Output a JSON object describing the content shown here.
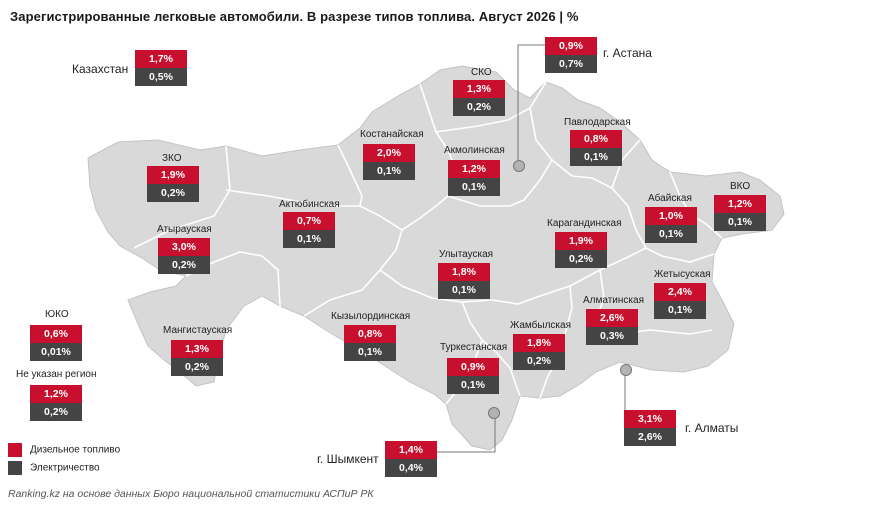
{
  "title": "Зарегистрированные легковые автомобили. В разрезе типов топлива. Август 2026 | %",
  "colors": {
    "diesel": "#c8102e",
    "electric": "#444444",
    "map_fill": "#d9d9d9",
    "border": "#ffffff"
  },
  "regions": {
    "kz": {
      "name": "Казахстан",
      "diesel": "1,7%",
      "electric": "0,5%"
    },
    "sko": {
      "name": "СКО",
      "diesel": "1,3%",
      "electric": "0,2%"
    },
    "astana": {
      "name": "г. Астана",
      "diesel": "0,9%",
      "electric": "0,7%"
    },
    "pavlodar": {
      "name": "Павлодарская",
      "diesel": "0,8%",
      "electric": "0,1%"
    },
    "kostanay": {
      "name": "Костанайская",
      "diesel": "2,0%",
      "electric": "0,1%"
    },
    "akmola": {
      "name": "Акмолинская",
      "diesel": "1,2%",
      "electric": "0,1%"
    },
    "zko": {
      "name": "ЗКО",
      "diesel": "1,9%",
      "electric": "0,2%"
    },
    "aktobe": {
      "name": "Актюбинская",
      "diesel": "0,7%",
      "electric": "0,1%"
    },
    "abay": {
      "name": "Абайская",
      "diesel": "1,0%",
      "electric": "0,1%"
    },
    "vko": {
      "name": "ВКО",
      "diesel": "1,2%",
      "electric": "0,1%"
    },
    "atyrau": {
      "name": "Атырауская",
      "diesel": "3,0%",
      "electric": "0,2%"
    },
    "karaganda": {
      "name": "Карагандинская",
      "diesel": "1,9%",
      "electric": "0,2%"
    },
    "ulytau": {
      "name": "Улытауская",
      "diesel": "1,8%",
      "electric": "0,1%"
    },
    "zhetysu": {
      "name": "Жетысуская",
      "diesel": "2,4%",
      "electric": "0,1%"
    },
    "uko": {
      "name": "ЮКО",
      "diesel": "0,6%",
      "electric": "0,01%"
    },
    "almaty_reg": {
      "name": "Алматинская",
      "diesel": "2,6%",
      "electric": "0,3%"
    },
    "mangystau": {
      "name": "Мангистауская",
      "diesel": "1,3%",
      "electric": "0,2%"
    },
    "kyzylorda": {
      "name": "Кызылординская",
      "diesel": "0,8%",
      "electric": "0,1%"
    },
    "zhambyl": {
      "name": "Жамбылская",
      "diesel": "1,8%",
      "electric": "0,2%"
    },
    "noreg": {
      "name": "Не указан регион",
      "diesel": "1,2%",
      "electric": "0,2%"
    },
    "turkestan": {
      "name": "Туркестанская",
      "diesel": "0,9%",
      "electric": "0,1%"
    },
    "almaty": {
      "name": "г. Алматы",
      "diesel": "3,1%",
      "electric": "2,6%"
    },
    "shymkent": {
      "name": "г. Шымкент",
      "diesel": "1,4%",
      "electric": "0,4%"
    }
  },
  "legend": {
    "diesel": "Дизельное топливо",
    "electric": "Электричество"
  },
  "source": "Ranking.kz на основе данных Бюро национальной статистики АСПиР РК"
}
